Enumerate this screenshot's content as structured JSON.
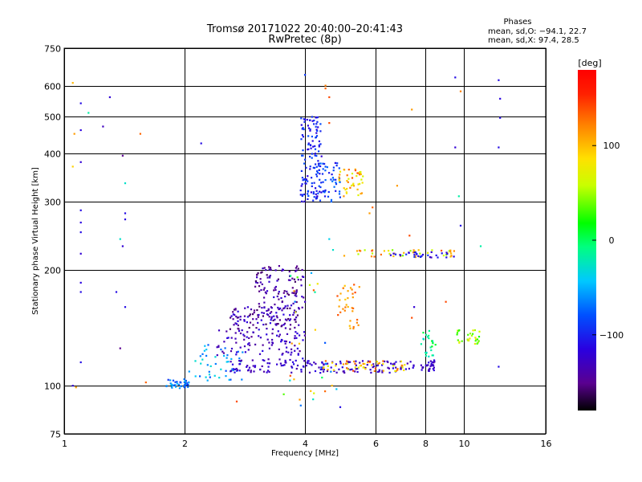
{
  "header": {
    "title": "Tromsø 20171022 20:40:00–20:41:43",
    "subtitle": "RwPretec (8p)"
  },
  "phases": {
    "label": "Phases",
    "line_o": "mean, sd,O: −94.1, 22.7",
    "line_x": "mean, sd,X:  97.4, 28.5"
  },
  "colorbar": {
    "label": "[deg]",
    "ticks": [
      {
        "label": "100",
        "value": 100
      },
      {
        "label": "0",
        "value": 0
      },
      {
        "label": "−100",
        "value": -100
      }
    ],
    "range": [
      -180,
      180
    ]
  },
  "chart_data": {
    "type": "scatter",
    "xlabel": "Frequency [MHz]",
    "ylabel": "Stationary phase Virtual Height [km]",
    "x_scale": "log2",
    "y_scale": "log",
    "xlim": [
      1,
      16
    ],
    "ylim": [
      75,
      750
    ],
    "grid": true,
    "x_ticks": [
      {
        "label": "1",
        "value": 1
      },
      {
        "label": "2",
        "value": 2
      },
      {
        "label": "4",
        "value": 4
      },
      {
        "label": "6",
        "value": 6
      },
      {
        "label": "8",
        "value": 8
      },
      {
        "label": "10",
        "value": 10
      },
      {
        "label": "16",
        "value": 16
      }
    ],
    "y_ticks": [
      {
        "label": "750",
        "value": 750
      },
      {
        "label": "600",
        "value": 600
      },
      {
        "label": "500",
        "value": 500
      },
      {
        "label": "400",
        "value": 400
      },
      {
        "label": "300",
        "value": 300
      },
      {
        "label": "200",
        "value": 200
      },
      {
        "label": "100",
        "value": 100
      },
      {
        "label": "75",
        "value": 75
      }
    ],
    "points": [
      {
        "f": 1.1,
        "h": 540,
        "p": -110
      },
      {
        "f": 1.1,
        "h": 460,
        "p": -115
      },
      {
        "f": 1.1,
        "h": 380,
        "p": -120
      },
      {
        "f": 1.1,
        "h": 285,
        "p": -110
      },
      {
        "f": 1.1,
        "h": 265,
        "p": -115
      },
      {
        "f": 1.1,
        "h": 250,
        "p": -110
      },
      {
        "f": 1.1,
        "h": 220,
        "p": -120
      },
      {
        "f": 1.1,
        "h": 185,
        "p": -115
      },
      {
        "f": 1.1,
        "h": 175,
        "p": -110
      },
      {
        "f": 1.05,
        "h": 610,
        "p": 100
      },
      {
        "f": 1.05,
        "h": 370,
        "p": 90
      },
      {
        "f": 1.06,
        "h": 450,
        "p": 110
      },
      {
        "f": 1.15,
        "h": 510,
        "p": -20
      },
      {
        "f": 1.25,
        "h": 470,
        "p": -130
      },
      {
        "f": 1.3,
        "h": 560,
        "p": -120
      },
      {
        "f": 1.4,
        "h": 395,
        "p": -150
      },
      {
        "f": 1.42,
        "h": 280,
        "p": -110
      },
      {
        "f": 1.42,
        "h": 270,
        "p": -115
      },
      {
        "f": 1.4,
        "h": 230,
        "p": -120
      },
      {
        "f": 1.35,
        "h": 175,
        "p": -110
      },
      {
        "f": 1.42,
        "h": 160,
        "p": -110
      },
      {
        "f": 1.42,
        "h": 335,
        "p": -30
      },
      {
        "f": 1.38,
        "h": 240,
        "p": -30
      },
      {
        "f": 1.55,
        "h": 450,
        "p": 130
      },
      {
        "f": 1.38,
        "h": 125,
        "p": -150
      },
      {
        "f": 1.1,
        "h": 115,
        "p": -110
      },
      {
        "f": 1.05,
        "h": 100,
        "p": -120
      },
      {
        "f": 1.07,
        "h": 99,
        "p": 110
      },
      {
        "f": 1.6,
        "h": 102,
        "p": 130
      },
      {
        "f": 2.2,
        "h": 425,
        "p": -110
      },
      {
        "f": 2.7,
        "h": 91,
        "p": 140
      },
      {
        "f": 4.0,
        "h": 640,
        "p": -90
      },
      {
        "f": 4.5,
        "h": 600,
        "p": 120
      },
      {
        "f": 4.5,
        "h": 590,
        "p": 130
      },
      {
        "f": 4.6,
        "h": 560,
        "p": 140
      },
      {
        "f": 4.6,
        "h": 480,
        "p": 140
      },
      {
        "f": 4.6,
        "h": 240,
        "p": -40
      },
      {
        "f": 4.7,
        "h": 225,
        "p": -30
      },
      {
        "f": 4.9,
        "h": 88,
        "p": -110
      },
      {
        "f": 5.8,
        "h": 280,
        "p": 110
      },
      {
        "f": 5.9,
        "h": 290,
        "p": 130
      },
      {
        "f": 6.8,
        "h": 330,
        "p": 110
      },
      {
        "f": 7.4,
        "h": 520,
        "p": 110
      },
      {
        "f": 7.3,
        "h": 245,
        "p": 140
      },
      {
        "f": 7.4,
        "h": 150,
        "p": 140
      },
      {
        "f": 7.5,
        "h": 160,
        "p": -120
      },
      {
        "f": 9.5,
        "h": 630,
        "p": -110
      },
      {
        "f": 9.8,
        "h": 580,
        "p": 120
      },
      {
        "f": 9.5,
        "h": 415,
        "p": -120
      },
      {
        "f": 9.7,
        "h": 310,
        "p": -20
      },
      {
        "f": 9.8,
        "h": 260,
        "p": -110
      },
      {
        "f": 12.2,
        "h": 620,
        "p": -110
      },
      {
        "f": 12.3,
        "h": 555,
        "p": -115
      },
      {
        "f": 12.3,
        "h": 495,
        "p": -110
      },
      {
        "f": 12.2,
        "h": 415,
        "p": -110
      },
      {
        "f": 12.2,
        "h": 112,
        "p": -110
      },
      {
        "f": 11.0,
        "h": 230,
        "p": -20
      },
      {
        "f": 9.0,
        "h": 165,
        "p": 140
      }
    ],
    "clusters": [
      {
        "f": [
          1.8,
          2.05
        ],
        "h": [
          98,
          104
        ],
        "p": [
          -100,
          -40
        ],
        "n": 40
      },
      {
        "f": [
          2.05,
          2.8
        ],
        "h": [
          103,
          128
        ],
        "p": [
          -90,
          -30
        ],
        "n": 45
      },
      {
        "f": [
          2.6,
          4.1
        ],
        "h": [
          108,
          118
        ],
        "p": [
          -140,
          -110
        ],
        "n": 70
      },
      {
        "f": [
          2.4,
          4.0
        ],
        "h": [
          120,
          140
        ],
        "p": [
          -150,
          -110
        ],
        "n": 90
      },
      {
        "f": [
          2.6,
          3.9
        ],
        "h": [
          140,
          160
        ],
        "p": [
          -160,
          -110
        ],
        "n": 110
      },
      {
        "f": [
          3.0,
          4.0
        ],
        "h": [
          158,
          205
        ],
        "p": [
          -160,
          -120
        ],
        "n": 110
      },
      {
        "f": [
          4.1,
          7.5
        ],
        "h": [
          108,
          116
        ],
        "p": [
          -140,
          -110
        ],
        "n": 90
      },
      {
        "f": [
          4.4,
          7.2
        ],
        "h": [
          109,
          116
        ],
        "p": [
          60,
          150
        ],
        "n": 50
      },
      {
        "f": [
          7.8,
          8.5
        ],
        "h": [
          109,
          117
        ],
        "p": [
          -140,
          -110
        ],
        "n": 30
      },
      {
        "f": [
          3.9,
          4.4
        ],
        "h": [
          300,
          500
        ],
        "p": [
          -120,
          -80
        ],
        "n": 130
      },
      {
        "f": [
          4.3,
          4.9
        ],
        "h": [
          300,
          380
        ],
        "p": [
          -110,
          -70
        ],
        "n": 50
      },
      {
        "f": [
          4.8,
          5.6
        ],
        "h": [
          305,
          365
        ],
        "p": [
          60,
          140
        ],
        "n": 45
      },
      {
        "f": [
          4.8,
          5.5
        ],
        "h": [
          140,
          185
        ],
        "p": [
          90,
          140
        ],
        "n": 35
      },
      {
        "f": [
          5.0,
          9.5
        ],
        "h": [
          215,
          225
        ],
        "p": [
          40,
          140
        ],
        "n": 45
      },
      {
        "f": [
          6.5,
          9.5
        ],
        "h": [
          215,
          222
        ],
        "p": [
          -130,
          -90
        ],
        "n": 30
      },
      {
        "f": [
          7.8,
          8.5
        ],
        "h": [
          118,
          140
        ],
        "p": [
          -40,
          10
        ],
        "n": 25
      },
      {
        "f": [
          9.6,
          11.0
        ],
        "h": [
          128,
          140
        ],
        "p": [
          20,
          80
        ],
        "n": 30
      },
      {
        "f": [
          3.5,
          4.8
        ],
        "h": [
          82,
          200
        ],
        "p": [
          -100,
          140
        ],
        "n": 30
      }
    ]
  }
}
